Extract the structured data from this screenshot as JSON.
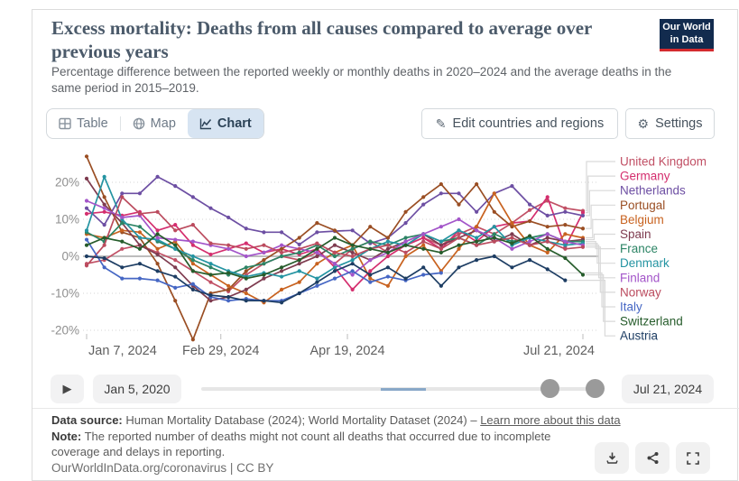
{
  "header": {
    "title": "Excess mortality: Deaths from all causes compared to average over previous years",
    "subtitle": "Percentage difference between the reported weekly or monthly deaths in 2020–2024 and the average deaths in the same period in 2015–2019."
  },
  "logo": {
    "line1": "Our World",
    "line2": "in Data"
  },
  "tabs": {
    "table": "Table",
    "map": "Map",
    "chart": "Chart",
    "active": "Chart"
  },
  "toolbar": {
    "edit_label": "Edit countries and regions",
    "settings_label": "Settings"
  },
  "timeline": {
    "start_label": "Jan 5, 2020",
    "end_label": "Jul 21, 2024"
  },
  "footer": {
    "source_label": "Data source:",
    "source_text": "Human Mortality Database (2024); World Mortality Dataset (2024) –",
    "source_link": "Learn more about this data",
    "note_label": "Note:",
    "note_text": "The reported number of deaths might not count all deaths that occurred due to incomplete coverage and delays in reporting.",
    "cc_text": "OurWorldInData.org/coronavirus | CC BY"
  },
  "chart_data": {
    "type": "line",
    "title": "Excess mortality: Deaths from all causes compared to average over previous years",
    "ylabel": "",
    "ylim": [
      -25,
      28
    ],
    "grid": "horizontal-dotted",
    "legend_position": "right",
    "markers": true,
    "x_dates": [
      "Jan 7",
      "Jan 14",
      "Jan 21",
      "Jan 28",
      "Feb 4",
      "Feb 11",
      "Feb 18",
      "Feb 25",
      "Mar 3",
      "Mar 10",
      "Mar 17",
      "Mar 24",
      "Mar 31",
      "Apr 7",
      "Apr 14",
      "Apr 21",
      "Apr 28",
      "May 5",
      "May 12",
      "May 19",
      "May 26",
      "Jun 2",
      "Jun 9",
      "Jun 16",
      "Jun 23",
      "Jun 30",
      "Jul 7",
      "Jul 14",
      "Jul 21"
    ],
    "x_ticks": [
      {
        "day": 0,
        "label": "Jan 7, 2024",
        "anchor": "start"
      },
      {
        "day": 53,
        "label": "Feb 29, 2024",
        "anchor": "middle"
      },
      {
        "day": 103,
        "label": "Apr 19, 2024",
        "anchor": "middle"
      },
      {
        "day": 196,
        "label": "Jul 21, 2024",
        "anchor": "end"
      }
    ],
    "y_ticks": [
      {
        "v": 20,
        "label": "20%"
      },
      {
        "v": 10,
        "label": "10%"
      },
      {
        "v": 0,
        "label": "0%"
      },
      {
        "v": -10,
        "label": "-10%"
      },
      {
        "v": -20,
        "label": "-20%"
      }
    ],
    "series": [
      {
        "name": "United Kingdom",
        "color": "#c15065",
        "values": [
          -2,
          -1,
          2,
          3,
          1,
          -1,
          -4,
          -7,
          -9.5,
          -5,
          -2,
          0,
          -1,
          1,
          -2,
          2,
          4,
          1,
          3,
          5,
          3,
          6,
          8,
          6,
          9,
          12.5,
          15,
          13,
          12.3
        ]
      },
      {
        "name": "Germany",
        "color": "#d42e6e",
        "values": [
          11.5,
          12,
          11,
          12,
          7,
          8.5,
          3,
          0.5,
          2,
          3.5,
          1,
          2,
          0.5,
          2,
          -3,
          -9,
          -4,
          0,
          3,
          5,
          2,
          7,
          4,
          8,
          9,
          9.5,
          16,
          2.5,
          11.8
        ]
      },
      {
        "name": "Netherlands",
        "color": "#6d4fa3",
        "values": [
          13,
          8.5,
          17,
          17,
          21.5,
          19,
          16,
          13,
          10.5,
          7.5,
          6.5,
          6.5,
          3.2,
          6.5,
          6.8,
          7,
          3.5,
          5,
          9,
          14,
          17,
          17,
          12,
          17,
          19,
          14,
          11,
          12,
          11
        ]
      },
      {
        "name": "Portugal",
        "color": "#9a4e23",
        "values": [
          27,
          16,
          6.5,
          5,
          -2,
          -12,
          -22.5,
          -10,
          -9,
          -4,
          -1,
          2,
          5,
          9,
          7,
          3,
          8,
          5,
          12,
          16,
          19.5,
          14,
          19.5,
          12,
          8,
          9.5,
          8,
          8.5,
          7.5
        ]
      },
      {
        "name": "Belgium",
        "color": "#c8621f",
        "values": [
          6,
          5,
          7,
          6.5,
          2,
          4,
          -2,
          -5,
          -8,
          -10,
          -12.5,
          -9,
          -7,
          -2,
          1,
          3,
          -6,
          -8,
          0,
          3,
          -4,
          2,
          8,
          17,
          9,
          3,
          1,
          6,
          5
        ]
      },
      {
        "name": "Spain",
        "color": "#7e3b4f",
        "values": [
          21,
          14,
          9,
          3,
          0.5,
          -3,
          -8,
          -12,
          -11,
          -9,
          -6,
          -4,
          -2,
          0,
          3,
          1,
          -1,
          2,
          4,
          6,
          3,
          5,
          7,
          4,
          6,
          3,
          5,
          4,
          4.5
        ]
      },
      {
        "name": "France",
        "color": "#2c8465",
        "values": [
          6.5,
          4,
          9,
          8,
          4,
          2,
          -1,
          -3,
          -5,
          -3,
          -2,
          0,
          1,
          3,
          0,
          2,
          4,
          3,
          5,
          6,
          4,
          5,
          3,
          6,
          4,
          5,
          6,
          4,
          4
        ]
      },
      {
        "name": "Denmark",
        "color": "#2494a2",
        "values": [
          7,
          21.5,
          10,
          5,
          4.5,
          2,
          0,
          -2,
          -4,
          -5.5,
          -4.5,
          -5.5,
          -4,
          -6,
          -3,
          -1,
          2,
          4,
          3,
          6,
          4,
          7,
          5,
          8,
          3,
          5,
          4,
          3,
          3.5
        ]
      },
      {
        "name": "Finland",
        "color": "#a355c9",
        "values": [
          15,
          13,
          10.5,
          11,
          5,
          4.5,
          4,
          3,
          2,
          0,
          1,
          3,
          2,
          1,
          -2,
          -5,
          -1,
          1,
          4,
          6,
          8,
          10,
          7,
          5,
          2,
          4,
          6,
          4,
          3
        ]
      },
      {
        "name": "Norway",
        "color": "#bb4b5e",
        "values": [
          -2.5,
          3,
          16,
          11.5,
          12,
          7,
          8.5,
          3.5,
          3,
          2,
          3,
          1,
          2,
          3.5,
          1,
          0,
          2,
          3,
          1,
          4,
          2,
          5,
          3,
          4,
          5,
          3,
          4,
          2,
          2.5
        ]
      },
      {
        "name": "Italy",
        "color": "#4667c4",
        "values": [
          4.5,
          -3,
          -6,
          -6,
          -6.5,
          -8.5,
          -7.5,
          -11,
          -12,
          -11.5,
          -12,
          -12,
          -10,
          -8,
          -6,
          -4,
          -7,
          -5.5,
          -6.5,
          -5,
          -4.5
        ]
      },
      {
        "name": "Switzerland",
        "color": "#265c2b",
        "values": [
          3,
          5,
          4,
          2,
          6,
          3,
          -4,
          -5,
          -4.5,
          -6,
          -5,
          -3,
          -1,
          2,
          5,
          3,
          2,
          1,
          3,
          2,
          1,
          3,
          4,
          5,
          3.5,
          5.5,
          2,
          -0.5,
          -5
        ]
      },
      {
        "name": "Austria",
        "color": "#1d3d63",
        "values": [
          0,
          -0.5,
          -3,
          -2,
          -4,
          -5.5,
          -9,
          -10.5,
          -11,
          -12,
          -12,
          -12.5,
          -10,
          -7,
          -4,
          -2,
          -5,
          -3,
          -6,
          -3,
          -8,
          -3,
          -1,
          0,
          -3,
          -1,
          -3.5,
          -6.5
        ]
      }
    ]
  }
}
